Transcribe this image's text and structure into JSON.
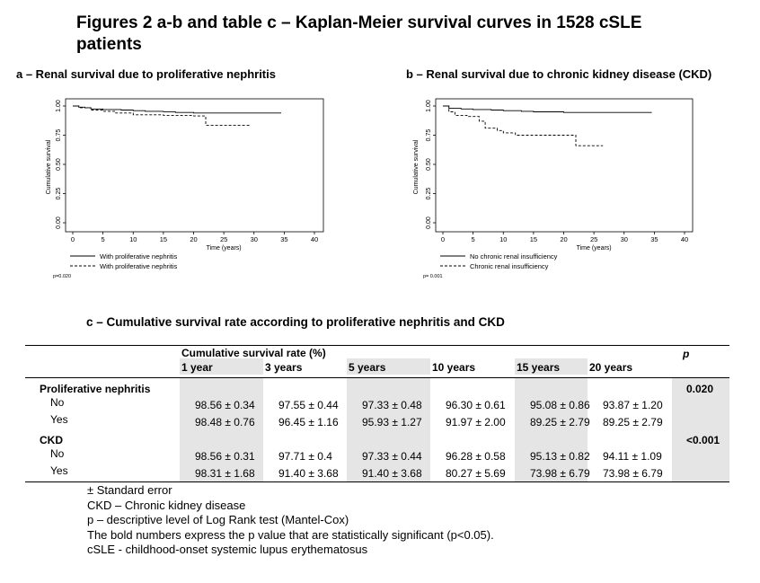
{
  "main_title": "Figures 2 a-b and table c – Kaplan-Meier survival curves in 1528 cSLE patients",
  "chart_data": [
    {
      "type": "line",
      "title": "a – Renal survival due to proliferative nephritis",
      "xlabel": "Time (years)",
      "ylabel": "Cumulative survival",
      "xlim": [
        0,
        40
      ],
      "ylim": [
        0,
        1
      ],
      "x_ticks": [
        "0",
        "5",
        "10",
        "15",
        "20",
        "25",
        "30",
        "35",
        "40"
      ],
      "y_ticks": [
        "0.00",
        "0.25",
        "0.50",
        "0.75",
        "1.00"
      ],
      "series": [
        {
          "name": "With proliferative nephritis",
          "style": "solid",
          "points": [
            [
              0,
              1.0
            ],
            [
              1,
              0.99
            ],
            [
              2,
              0.985
            ],
            [
              3,
              0.975
            ],
            [
              5,
              0.97
            ],
            [
              8,
              0.965
            ],
            [
              10,
              0.96
            ],
            [
              12,
              0.955
            ],
            [
              15,
              0.951
            ],
            [
              17,
              0.945
            ],
            [
              20,
              0.94
            ],
            [
              34.5,
              0.94
            ]
          ]
        },
        {
          "name": "With proliferative nephritis",
          "style": "dashed",
          "points": [
            [
              0,
              1.0
            ],
            [
              1,
              0.985
            ],
            [
              3,
              0.965
            ],
            [
              5,
              0.955
            ],
            [
              7,
              0.94
            ],
            [
              10,
              0.925
            ],
            [
              15,
              0.92
            ],
            [
              20,
              0.915
            ],
            [
              22,
              0.835
            ],
            [
              29.5,
              0.835
            ]
          ]
        }
      ],
      "annotation": "p=0.020",
      "legend_position": "bottom-left"
    },
    {
      "type": "line",
      "title": "b –  Renal survival due to chronic kidney disease (CKD)",
      "xlabel": "Time (years)",
      "ylabel": "Cumulative survival",
      "xlim": [
        0,
        40
      ],
      "ylim": [
        0,
        1
      ],
      "x_ticks": [
        "0",
        "5",
        "10",
        "15",
        "20",
        "25",
        "30",
        "35",
        "40"
      ],
      "y_ticks": [
        "0.00",
        "0.25",
        "0.50",
        "0.75",
        "1.00"
      ],
      "series": [
        {
          "name": "No chronic renal insufficiency",
          "style": "solid",
          "points": [
            [
              0,
              1.0
            ],
            [
              1,
              0.98
            ],
            [
              3,
              0.975
            ],
            [
              5,
              0.97
            ],
            [
              8,
              0.965
            ],
            [
              10,
              0.96
            ],
            [
              13,
              0.955
            ],
            [
              15,
              0.95
            ],
            [
              20,
              0.945
            ],
            [
              34.5,
              0.94
            ]
          ]
        },
        {
          "name": "Chronic renal insufficiency",
          "style": "dashed",
          "points": [
            [
              0,
              1.0
            ],
            [
              1,
              0.95
            ],
            [
              2,
              0.92
            ],
            [
              4,
              0.91
            ],
            [
              6,
              0.87
            ],
            [
              7,
              0.81
            ],
            [
              9,
              0.79
            ],
            [
              10,
              0.77
            ],
            [
              12,
              0.75
            ],
            [
              20,
              0.75
            ],
            [
              22,
              0.66
            ],
            [
              26.5,
              0.66
            ]
          ]
        }
      ],
      "annotation": "p= 0.001",
      "legend_position": "bottom-left"
    }
  ],
  "table": {
    "title": "c – Cumulative survival rate according to proliferative nephritis and CKD",
    "group_header": "Cumulative survival rate (%)",
    "p_header": "p",
    "columns": [
      "1 year",
      "3 years",
      "5 years",
      "10 years",
      "15 years",
      "20 years"
    ],
    "groups": [
      {
        "label": "Proliferative nephritis",
        "p": "0.020",
        "rows": [
          {
            "label": "No",
            "values": [
              "98.56 ± 0.34",
              "97.55 ± 0.44",
              "97.33 ± 0.48",
              "96.30 ± 0.61",
              "95.08 ± 0.86",
              "93.87 ± 1.20"
            ]
          },
          {
            "label": "Yes",
            "values": [
              "98.48 ± 0.76",
              "96.45 ± 1.16",
              "95.93 ± 1.27",
              "91.97 ± 2.00",
              "89.25 ± 2.79",
              "89.25 ± 2.79"
            ]
          }
        ]
      },
      {
        "label": "CKD",
        "p": "<0.001",
        "rows": [
          {
            "label": "No",
            "values": [
              "98.56 ± 0.31",
              "97.71 ± 0.4",
              "97.33 ± 0.44",
              "96.28 ± 0.58",
              "95.13 ± 0.82",
              "94.11 ± 1.09"
            ]
          },
          {
            "label": "Yes",
            "values": [
              "98.31 ± 1.68",
              "91.40 ± 3.68",
              "91.40 ± 3.68",
              "80.27 ± 5.69",
              "73.98 ± 6.79",
              "73.98 ± 6.79"
            ]
          }
        ]
      }
    ]
  },
  "notes": [
    "± Standard error",
    "CKD – Chronic kidney disease",
    "p – descriptive level of Log Rank test (Mantel-Cox)",
    "The bold numbers express the p value that are statistically significant (p<0.05).",
    "cSLE - childhood-onset systemic lupus erythematosus"
  ]
}
